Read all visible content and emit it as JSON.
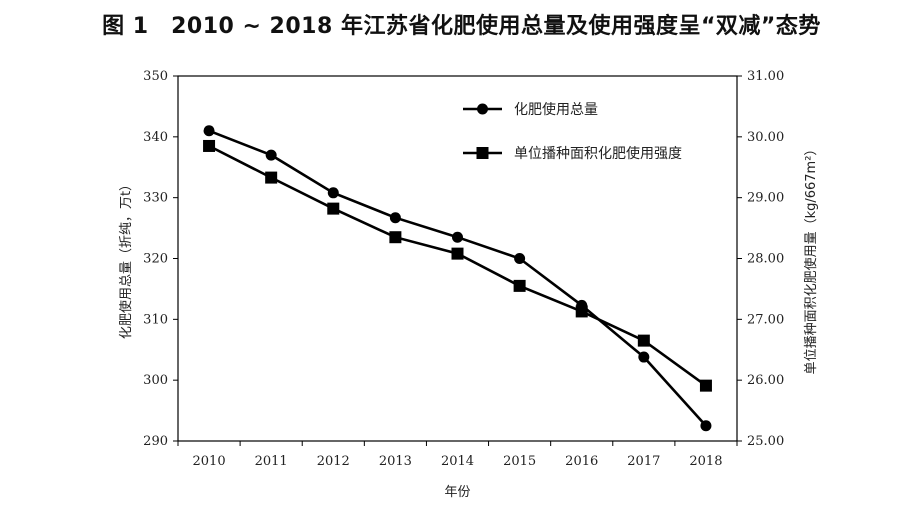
{
  "chart_data": {
    "type": "line",
    "title": "图 1　2010 ~ 2018 年江苏省化肥使用总量及使用强度呈“双减”态势",
    "xlabel": "年份",
    "ylabel_left": "化肥使用总量（折纯，万t）",
    "ylabel_right": "单位播种面积化肥使用量（kg/667m²）",
    "categories": [
      "2010",
      "2011",
      "2012",
      "2013",
      "2014",
      "2015",
      "2016",
      "2017",
      "2018"
    ],
    "y_left_range": [
      290,
      350
    ],
    "y_left_ticks": [
      "290",
      "300",
      "310",
      "320",
      "330",
      "340",
      "350"
    ],
    "y_right_range": [
      25.0,
      31.0
    ],
    "y_right_ticks": [
      "25.00",
      "26.00",
      "27.00",
      "28.00",
      "29.00",
      "30.00",
      "31.00"
    ],
    "legend_position": "top-right",
    "grid": false,
    "series": [
      {
        "name": "化肥使用总量",
        "axis": "left",
        "marker": "circle",
        "color": "#000000",
        "values": [
          341.0,
          337.0,
          330.8,
          326.7,
          323.5,
          320.0,
          312.3,
          303.8,
          292.5
        ]
      },
      {
        "name": "单位播种面积化肥使用强度",
        "axis": "right",
        "marker": "square",
        "color": "#000000",
        "values": [
          29.85,
          29.33,
          28.82,
          28.35,
          28.08,
          27.55,
          27.13,
          26.65,
          25.91
        ]
      }
    ]
  }
}
